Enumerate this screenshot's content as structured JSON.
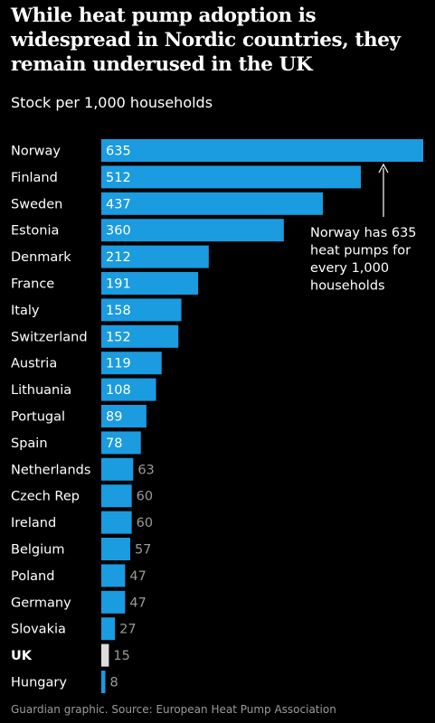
{
  "title": "While heat pump adoption is widespread in Nordic countries, they remain underused in the UK",
  "subtitle": "Stock per 1,000 households",
  "source": "Guardian graphic. Source: European Heat Pump Association",
  "annotation": [
    "Norway has 635",
    "heat pumps for",
    "every 1,000",
    "households"
  ],
  "colors": {
    "bar": "#1b9be0",
    "highlight": "#dcdcdc",
    "label_inside": "#ffffff",
    "label_outside": "#9a9a9a",
    "background": "#000000"
  },
  "chart_data": {
    "type": "bar",
    "orientation": "horizontal",
    "categories": [
      "Norway",
      "Finland",
      "Sweden",
      "Estonia",
      "Denmark",
      "France",
      "Italy",
      "Switzerland",
      "Austria",
      "Lithuania",
      "Portugal",
      "Spain",
      "Netherlands",
      "Czech Rep",
      "Ireland",
      "Belgium",
      "Poland",
      "Germany",
      "Slovakia",
      "UK",
      "Hungary"
    ],
    "values": [
      635,
      512,
      437,
      360,
      212,
      191,
      158,
      152,
      119,
      108,
      89,
      78,
      63,
      60,
      60,
      57,
      47,
      47,
      27,
      15,
      8
    ],
    "highlight": "UK",
    "xlim": [
      0,
      635
    ]
  }
}
